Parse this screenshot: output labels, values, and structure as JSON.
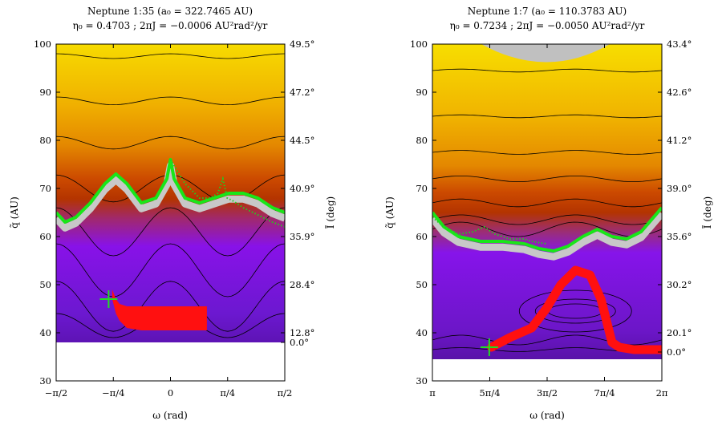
{
  "chart_data": [
    {
      "type": "heatmap",
      "title": "Neptune 1:35 (a₀ = 322.7465 AU)",
      "subtitle": "η₀ = 0.4703  ;  2πJ = −0.0006 AU²rad²/yr",
      "xlabel": "ω (rad)",
      "ylabel": "q̃ (AU)",
      "y2label": "Ĩ (deg)",
      "xlim": [
        -1.5708,
        1.5708
      ],
      "ylim": [
        30,
        100
      ],
      "x_ticks": [
        {
          "value": -1.5708,
          "label": "−π/2"
        },
        {
          "value": -0.7854,
          "label": "−π/4"
        },
        {
          "value": 0,
          "label": "0"
        },
        {
          "value": 0.7854,
          "label": "π/4"
        },
        {
          "value": 1.5708,
          "label": "π/2"
        }
      ],
      "y_ticks": [
        30,
        40,
        50,
        60,
        70,
        80,
        90,
        100
      ],
      "y2_ticks": [
        {
          "q": 38,
          "label": "0.0°"
        },
        {
          "q": 40,
          "label": "12.8°"
        },
        {
          "q": 50,
          "label": "28.4°"
        },
        {
          "q": 60,
          "label": "35.9°"
        },
        {
          "q": 70,
          "label": "40.9°"
        },
        {
          "q": 80,
          "label": "44.5°"
        },
        {
          "q": 90,
          "label": "47.2°"
        },
        {
          "q": 100,
          "label": "49.5°"
        }
      ],
      "colormap": {
        "low": "#7a00e0",
        "mid": "#c83c00",
        "high": "#f5d000"
      },
      "forbidden_below_q": 38,
      "contour_levels": [
        {
          "q0": 97.5,
          "amp": 0.5
        },
        {
          "q0": 88.2,
          "amp": 0.8
        },
        {
          "q0": 79.5,
          "amp": 1.3
        },
        {
          "q0": 70.0,
          "amp": 2.8
        },
        {
          "q0": 61.0,
          "amp": 5.0
        },
        {
          "q0": 53.0,
          "amp": 5.5
        },
        {
          "q0": 45.5,
          "amp": 5.2
        },
        {
          "q0": 41.5,
          "amp": 2.5
        }
      ],
      "separatrix": {
        "x": [
          -1.5708,
          -1.45,
          -1.3,
          -1.1,
          -0.9,
          -0.75,
          -0.6,
          -0.4,
          -0.2,
          -0.05,
          0,
          0.05,
          0.2,
          0.4,
          0.6,
          0.8,
          1.0,
          1.2,
          1.4,
          1.5708
        ],
        "y": [
          65,
          63,
          64,
          67,
          71,
          73,
          71,
          67,
          68,
          72,
          76,
          72,
          68,
          67,
          68,
          69,
          69,
          68,
          66,
          65
        ]
      },
      "trajectory": {
        "x": [
          -0.8,
          -0.75,
          -0.7,
          -0.6,
          -0.4,
          -0.2,
          0,
          0.2,
          0.4,
          0.5
        ],
        "y_top": [
          49,
          47,
          46,
          45.5,
          45.5,
          45.5,
          45.5,
          45.5,
          45.5,
          45.5
        ],
        "y_bottom": [
          47,
          44,
          42.5,
          41,
          40.5,
          40.5,
          40.5,
          40.5,
          40.5,
          40.5
        ]
      },
      "dotted": {
        "x": [
          0,
          0.2,
          0.4,
          0.55,
          0.65,
          0.72,
          0.78,
          0.85,
          1.0,
          1.2,
          1.4,
          1.5708
        ],
        "y": [
          76,
          71,
          68,
          68,
          69,
          72,
          68,
          67.5,
          66,
          64.5,
          63,
          62
        ]
      },
      "initial_point": {
        "x": -0.85,
        "y": 47
      }
    },
    {
      "type": "heatmap",
      "title": "Neptune 1:7 (a₀ = 110.3783 AU)",
      "subtitle": "η₀ = 0.7234  ;  2πJ = −0.0050 AU²rad²/yr",
      "xlabel": "ω (rad)",
      "ylabel": "q̃ (AU)",
      "y2label": "Ĩ (deg)",
      "xlim": [
        3.1416,
        6.2832
      ],
      "ylim": [
        30,
        100
      ],
      "x_ticks": [
        {
          "value": 3.1416,
          "label": "π"
        },
        {
          "value": 3.927,
          "label": "5π/4"
        },
        {
          "value": 4.7124,
          "label": "3π/2"
        },
        {
          "value": 5.4978,
          "label": "7π/4"
        },
        {
          "value": 6.2832,
          "label": "2π"
        }
      ],
      "y_ticks": [
        30,
        40,
        50,
        60,
        70,
        80,
        90,
        100
      ],
      "y2_ticks": [
        {
          "q": 36,
          "label": "0.0°"
        },
        {
          "q": 40,
          "label": "20.1°"
        },
        {
          "q": 50,
          "label": "30.2°"
        },
        {
          "q": 60,
          "label": "35.6°"
        },
        {
          "q": 70,
          "label": "39.0°"
        },
        {
          "q": 80,
          "label": "41.2°"
        },
        {
          "q": 90,
          "label": "42.6°"
        },
        {
          "q": 100,
          "label": "43.4°"
        }
      ],
      "colormap": {
        "low": "#7a00e0",
        "mid": "#c83c00",
        "high": "#f5d000"
      },
      "forbidden_below_q": 34.5,
      "contour_levels": [
        {
          "q0": 94.5,
          "amp": 0.3
        },
        {
          "q0": 85.0,
          "amp": 0.3
        },
        {
          "q0": 77.5,
          "amp": 0.4
        },
        {
          "q0": 72.0,
          "amp": 0.6
        },
        {
          "q0": 67.0,
          "amp": 0.8
        },
        {
          "q0": 63.5,
          "amp": 1.0
        },
        {
          "q0": 61.5,
          "amp": 1.5
        },
        {
          "q0": 38.5,
          "amp": 1.0
        },
        {
          "q0": 36.5,
          "amp": 0.4
        }
      ],
      "libration_center": {
        "x": 5.1,
        "y": 44.5
      },
      "separatrix": {
        "x": [
          3.1416,
          3.3,
          3.5,
          3.8,
          4.1,
          4.4,
          4.6,
          4.8,
          5.0,
          5.2,
          5.4,
          5.6,
          5.8,
          6.0,
          6.2832
        ],
        "y": [
          65,
          62,
          60,
          59,
          59,
          58.5,
          57.5,
          57,
          58,
          60,
          61.5,
          60,
          59.5,
          61,
          66
        ]
      },
      "trajectory": {
        "x": [
          3.95,
          4.2,
          4.5,
          4.7,
          4.9,
          5.1,
          5.3,
          5.45,
          5.55,
          5.6,
          5.7,
          5.9,
          6.2832
        ],
        "y": [
          37,
          39,
          41,
          45,
          50,
          53,
          52,
          47,
          41,
          38,
          37,
          36.5,
          36.5
        ]
      },
      "dotted": {
        "x": [
          3.1416,
          3.3,
          3.5,
          3.7,
          3.85,
          4.0,
          4.2,
          4.4,
          4.5,
          4.7
        ],
        "y": [
          64,
          62,
          60.5,
          61,
          62,
          60.5,
          59.5,
          59.5,
          59,
          58.5
        ]
      },
      "initial_point": {
        "x": 3.92,
        "y": 37
      }
    }
  ]
}
